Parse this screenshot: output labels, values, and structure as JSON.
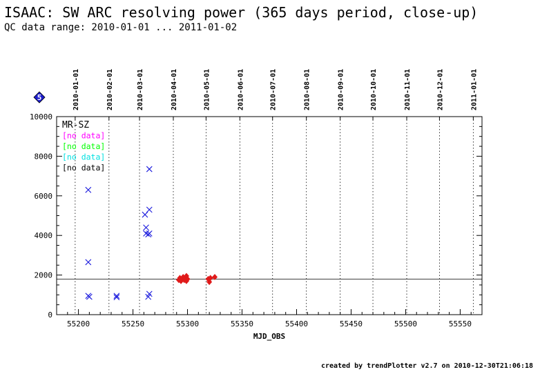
{
  "header": {
    "title": "ISAAC: SW ARC resolving power (365 days period, close-up)",
    "subtitle": "QC data range: 2010-01-01 ... 2011-01-02"
  },
  "footer": {
    "credit": "created by trendPlotter v2.7 on 2010-12-30T21:06:18"
  },
  "badge": {
    "value": "5",
    "color": "#1c1ccc"
  },
  "chart_data": {
    "type": "scatter",
    "xlabel": "MJD_OBS",
    "ylabel": "",
    "xlim": [
      55180,
      55570
    ],
    "ylim": [
      0,
      10000
    ],
    "x_ticks": [
      55200,
      55250,
      55300,
      55350,
      55400,
      55450,
      55500,
      55550
    ],
    "y_ticks": [
      0,
      2000,
      4000,
      6000,
      8000,
      10000
    ],
    "top_axis": {
      "labels": [
        "2010-01-01",
        "2010-02-01",
        "2010-03-01",
        "2010-04-01",
        "2010-05-01",
        "2010-06-01",
        "2010-07-01",
        "2010-08-01",
        "2010-09-01",
        "2010-10-01",
        "2010-11-01",
        "2010-12-01",
        "2011-01-01"
      ],
      "mjd": [
        55197,
        55228,
        55256,
        55287,
        55317,
        55348,
        55378,
        55409,
        55440,
        55470,
        55501,
        55531,
        55562
      ]
    },
    "grid": "vertical dotted at month boundaries",
    "reference_line": 1800,
    "legend": {
      "placement": "top-left",
      "entries": [
        {
          "label": "MR-SZ",
          "color": "#000000"
        },
        {
          "label": "[no data]",
          "color": "#ff00ff"
        },
        {
          "label": "[no data]",
          "color": "#00ff00"
        },
        {
          "label": "[no data]",
          "color": "#00e0e0"
        },
        {
          "label": "[no data]",
          "color": "#000000"
        }
      ]
    },
    "series": [
      {
        "marker": "x",
        "color": "#1a1add",
        "points": [
          [
            55209,
            6300
          ],
          [
            55209,
            2650
          ],
          [
            55209,
            950
          ],
          [
            55210,
            900
          ],
          [
            55235,
            950
          ],
          [
            55235,
            880
          ],
          [
            55261,
            5050
          ],
          [
            55262,
            4400
          ],
          [
            55262,
            4100
          ],
          [
            55264,
            4050
          ],
          [
            55265,
            7350
          ],
          [
            55265,
            5300
          ],
          [
            55265,
            4100
          ],
          [
            55265,
            1050
          ],
          [
            55264,
            900
          ]
        ]
      },
      {
        "marker": "diamond",
        "color": "#e01a1a",
        "points": [
          [
            55292,
            1750
          ],
          [
            55293,
            1850
          ],
          [
            55294,
            1700
          ],
          [
            55295,
            1800
          ],
          [
            55296,
            1900
          ],
          [
            55297,
            1750
          ],
          [
            55298,
            1850
          ],
          [
            55299,
            1950
          ],
          [
            55299,
            1700
          ],
          [
            55300,
            1800
          ],
          [
            55319,
            1800
          ],
          [
            55320,
            1650
          ],
          [
            55321,
            1850
          ],
          [
            55325,
            1900
          ]
        ]
      }
    ]
  }
}
